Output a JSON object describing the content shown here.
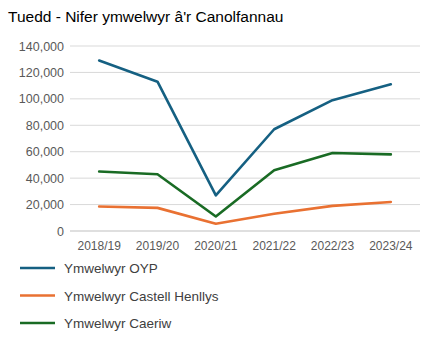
{
  "chart_data": {
    "type": "line",
    "title": "Tuedd - Nifer ymwelwyr â'r Canolfannau",
    "categories": [
      "2018/19",
      "2019/20",
      "2020/21",
      "2021/22",
      "2022/23",
      "2023/24"
    ],
    "series": [
      {
        "name": "Ymwelwyr OYP",
        "color": "#156082",
        "values": [
          129000,
          113000,
          27000,
          77000,
          99000,
          111000
        ]
      },
      {
        "name": "Ymwelwyr Castell Henllys",
        "color": "#E97132",
        "values": [
          18500,
          17500,
          5500,
          13000,
          19000,
          22000
        ]
      },
      {
        "name": "Ymwelwyr Caeriw",
        "color": "#196B24",
        "values": [
          45000,
          43000,
          11000,
          46000,
          59000,
          58000
        ]
      }
    ],
    "ylim": [
      0,
      140000
    ],
    "yticks": [
      0,
      {
        "value": 20000,
        "label": "20,000"
      },
      {
        "value": 40000,
        "label": "40,000"
      },
      {
        "value": 60000,
        "label": "60,000"
      },
      {
        "value": 80000,
        "label": "80,000"
      },
      {
        "value": 100000,
        "label": "100,000"
      },
      {
        "value": 120000,
        "label": "120,000"
      },
      {
        "value": 140000,
        "label": "140,000"
      }
    ],
    "grid": true,
    "legend": "bottom"
  }
}
